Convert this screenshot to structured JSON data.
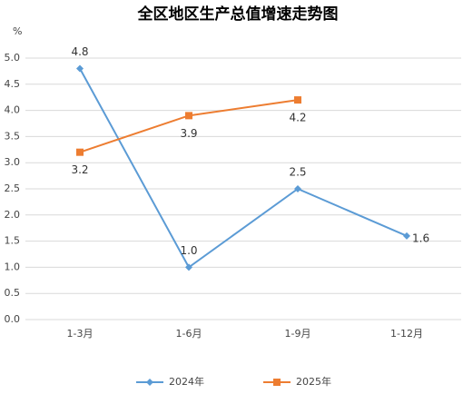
{
  "chart_data": {
    "type": "line",
    "title": "全区地区生产总值增速走势图",
    "y_label": "%",
    "categories": [
      "1-3月",
      "1-6月",
      "1-9月",
      "1-12月"
    ],
    "series": [
      {
        "name": "2024年",
        "color": "#5b9bd5",
        "marker": "diamond",
        "values": [
          4.8,
          1.0,
          2.5,
          1.6
        ],
        "value_labels": [
          "4.8",
          "1.0",
          "2.5",
          "1.6"
        ]
      },
      {
        "name": "2025年",
        "color": "#ed7d31",
        "marker": "square",
        "values": [
          3.2,
          3.9,
          4.2,
          null
        ],
        "value_labels": [
          "3.2",
          "3.9",
          "4.2",
          null
        ]
      }
    ],
    "ylim": [
      0,
      5
    ],
    "yticks": [
      {
        "value": 0,
        "label": "0.0"
      },
      0.5,
      {
        "value": 1,
        "label": "1.0"
      },
      1.5,
      {
        "value": 2,
        "label": "2.0"
      },
      2.5,
      {
        "value": 3,
        "label": "3.0"
      },
      3.5,
      {
        "value": 4,
        "label": "4.0"
      },
      4.5,
      {
        "value": 5,
        "label": "5.0"
      }
    ],
    "grid": true,
    "legend": "bottom"
  }
}
